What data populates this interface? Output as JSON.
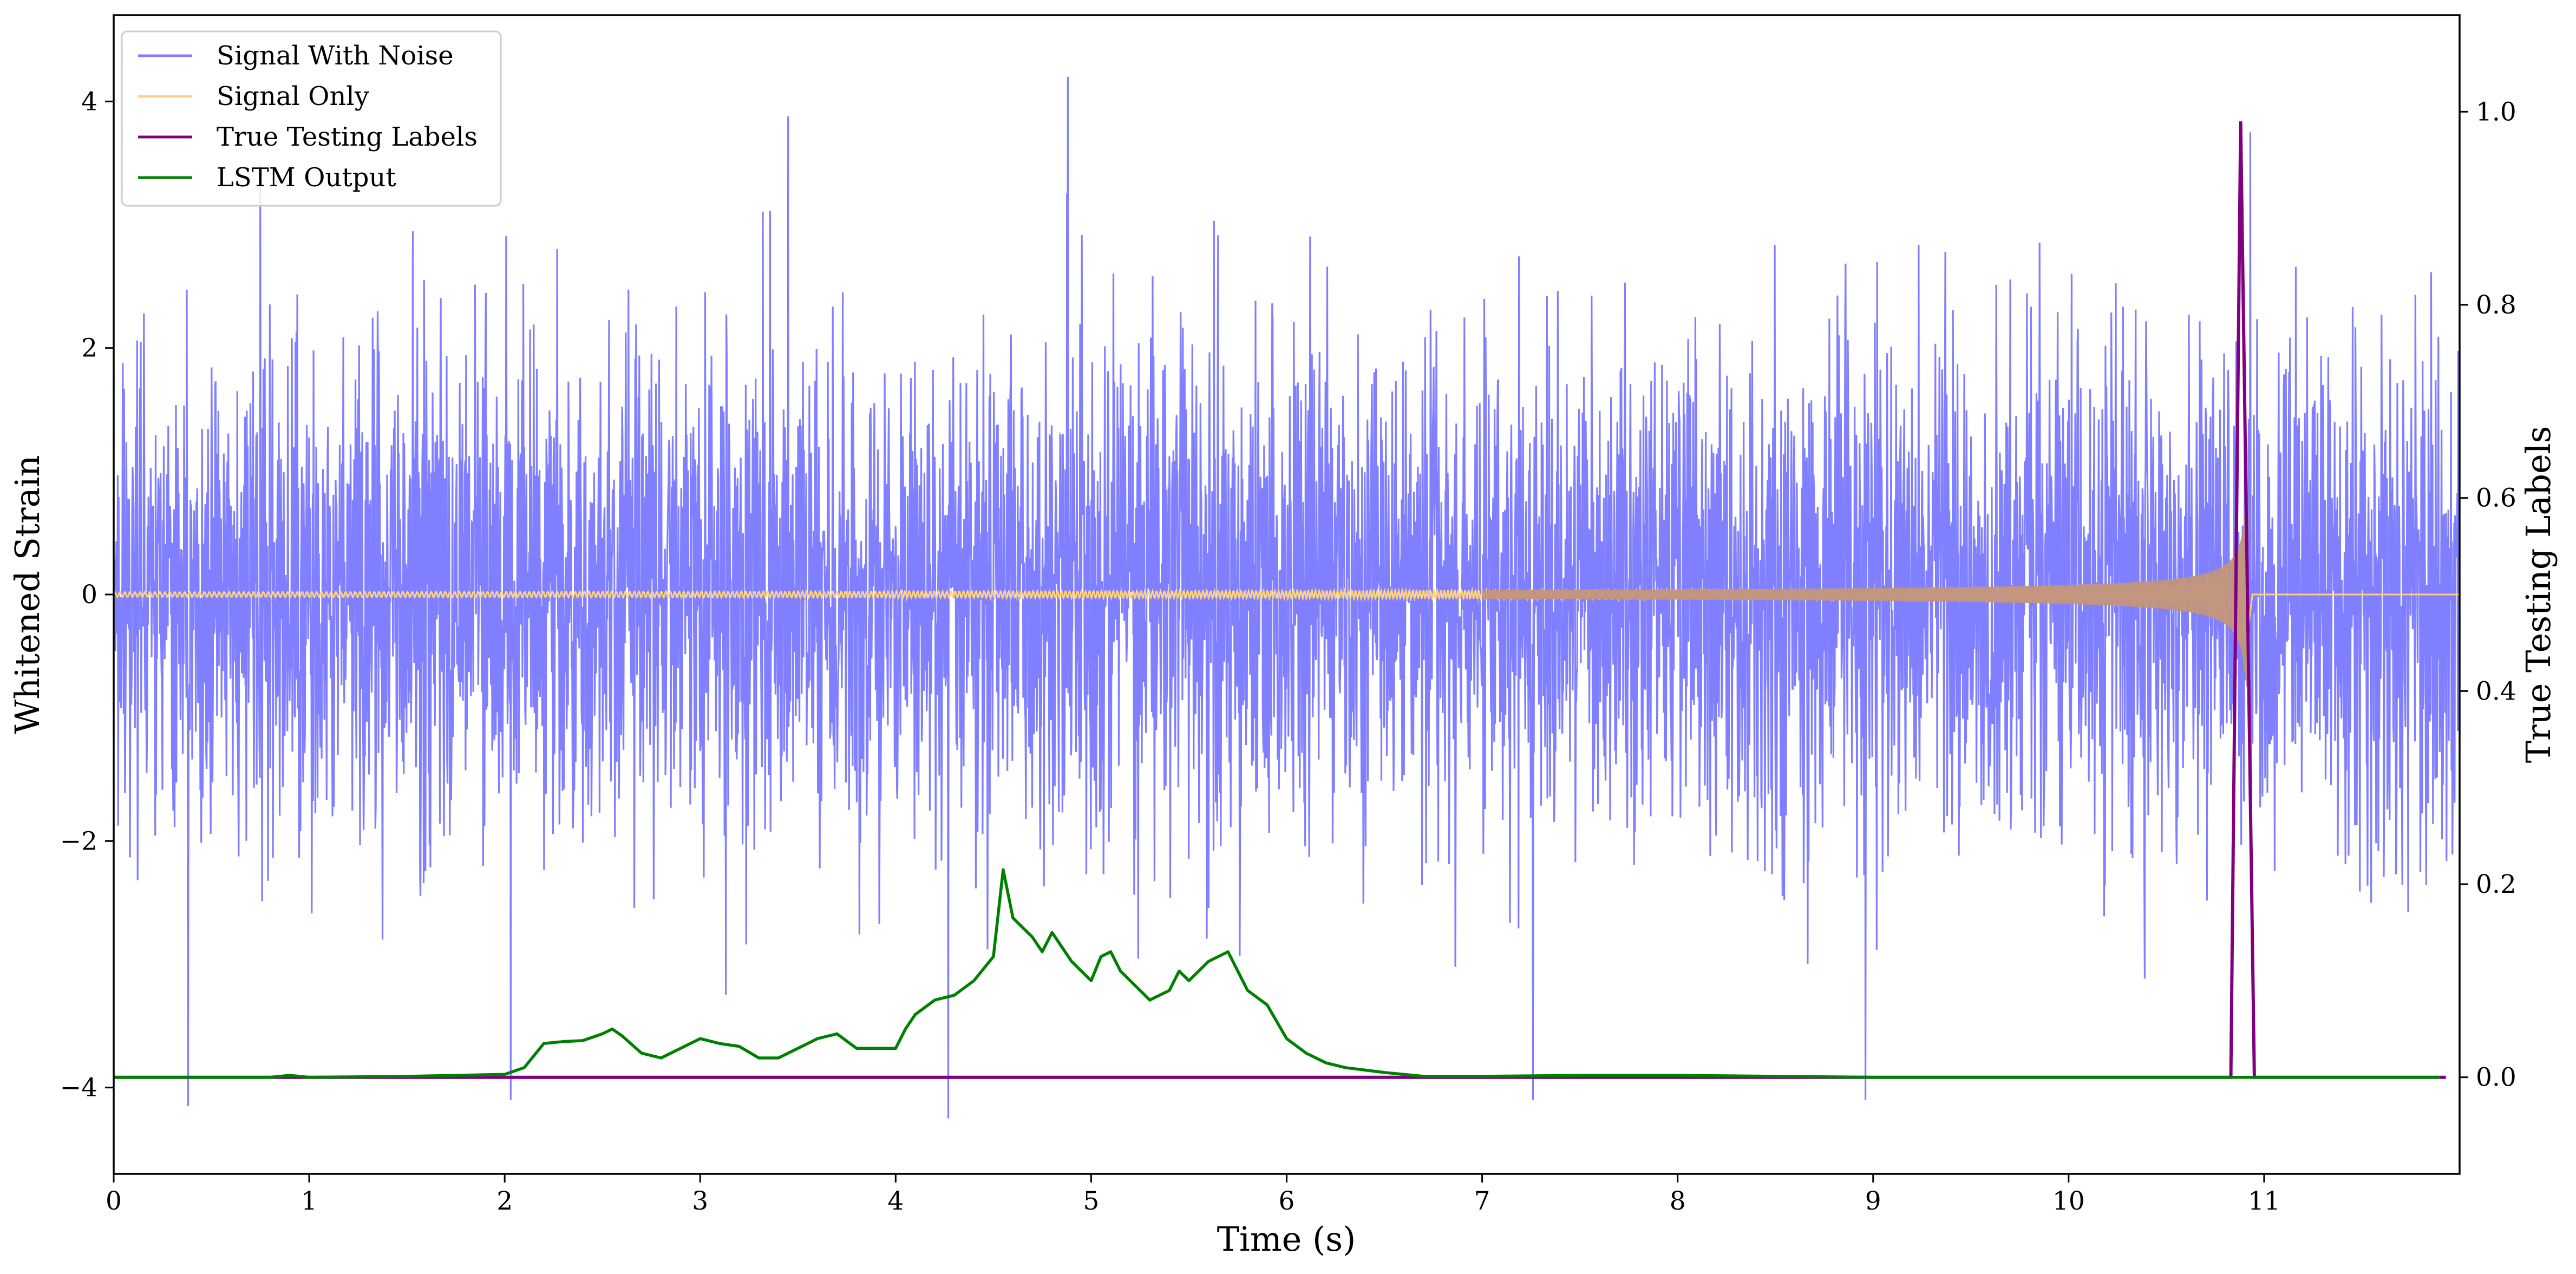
{
  "chart_data": {
    "type": "line",
    "xlabel": "Time (s)",
    "ylabel": "Whitened Strain",
    "ylabel_right": "True Testing Labels",
    "xlim": [
      0,
      12
    ],
    "ylim": [
      -4.7,
      4.7
    ],
    "ylim_right": [
      -0.1,
      1.1
    ],
    "x_ticks": [
      0,
      1,
      2,
      3,
      4,
      5,
      6,
      7,
      8,
      9,
      10,
      11
    ],
    "y_ticks": [
      -4,
      -2,
      0,
      2,
      4
    ],
    "y_tick_labels": [
      "−4",
      "−2",
      "0",
      "2",
      "4"
    ],
    "y_ticks_right": [
      0.0,
      0.2,
      0.4,
      0.6,
      0.8,
      1.0
    ],
    "y_tick_labels_right": [
      "0.0",
      "0.2",
      "0.4",
      "0.6",
      "0.8",
      "1.0"
    ],
    "grid": false,
    "legend_position": "top-left",
    "series": [
      {
        "name": "Signal With Noise",
        "axis": "left",
        "color": "#7f7fff",
        "kind": "noise",
        "std": 1.0,
        "envelope_max": 4.2,
        "envelope_min": -4.25,
        "spikes": [
          {
            "x": 0.38,
            "y": -4.15
          },
          {
            "x": 0.75,
            "y": 3.5
          },
          {
            "x": 2.03,
            "y": -4.1
          },
          {
            "x": 3.45,
            "y": 3.88
          },
          {
            "x": 4.27,
            "y": -4.25
          },
          {
            "x": 4.88,
            "y": 4.25
          },
          {
            "x": 7.26,
            "y": -4.1
          },
          {
            "x": 8.96,
            "y": -4.1
          },
          {
            "x": 10.93,
            "y": 3.75
          }
        ]
      },
      {
        "name": "Signal Only",
        "axis": "left",
        "color": "#ffd27f",
        "kind": "chirp",
        "t_start": 0,
        "t_merger": 10.92,
        "amp_start": 0.02,
        "amp_peak": 0.75,
        "overlay_color": "#c0937f"
      },
      {
        "name": "True Testing Labels",
        "axis": "right",
        "color": "#800080",
        "x": [
          0,
          10.83,
          10.88,
          10.95,
          11.93
        ],
        "y": [
          0,
          0,
          0.99,
          0,
          0
        ]
      },
      {
        "name": "LSTM Output",
        "axis": "right",
        "color": "#008000",
        "x": [
          0,
          0.8,
          0.9,
          1.0,
          1.5,
          2.0,
          2.1,
          2.2,
          2.3,
          2.4,
          2.5,
          2.55,
          2.6,
          2.7,
          2.8,
          2.9,
          3.0,
          3.1,
          3.2,
          3.3,
          3.4,
          3.5,
          3.6,
          3.7,
          3.8,
          3.9,
          4.0,
          4.05,
          4.1,
          4.2,
          4.3,
          4.4,
          4.5,
          4.55,
          4.6,
          4.7,
          4.75,
          4.8,
          4.9,
          5.0,
          5.05,
          5.1,
          5.15,
          5.2,
          5.3,
          5.4,
          5.45,
          5.5,
          5.6,
          5.65,
          5.7,
          5.8,
          5.9,
          6.0,
          6.1,
          6.2,
          6.3,
          6.5,
          6.7,
          7.0,
          7.5,
          8.0,
          8.5,
          9.0,
          10.0,
          11.0,
          11.9
        ],
        "y": [
          0,
          0,
          0.002,
          0,
          0.001,
          0.003,
          0.01,
          0.035,
          0.037,
          0.038,
          0.045,
          0.05,
          0.043,
          0.025,
          0.02,
          0.03,
          0.04,
          0.035,
          0.032,
          0.02,
          0.02,
          0.03,
          0.04,
          0.045,
          0.03,
          0.03,
          0.03,
          0.05,
          0.065,
          0.08,
          0.085,
          0.1,
          0.125,
          0.215,
          0.165,
          0.145,
          0.13,
          0.15,
          0.12,
          0.1,
          0.125,
          0.13,
          0.11,
          0.1,
          0.08,
          0.09,
          0.11,
          0.1,
          0.12,
          0.125,
          0.13,
          0.09,
          0.075,
          0.04,
          0.025,
          0.015,
          0.01,
          0.005,
          0.001,
          0.001,
          0.002,
          0.002,
          0.001,
          0,
          0,
          0,
          0
        ]
      }
    ]
  }
}
